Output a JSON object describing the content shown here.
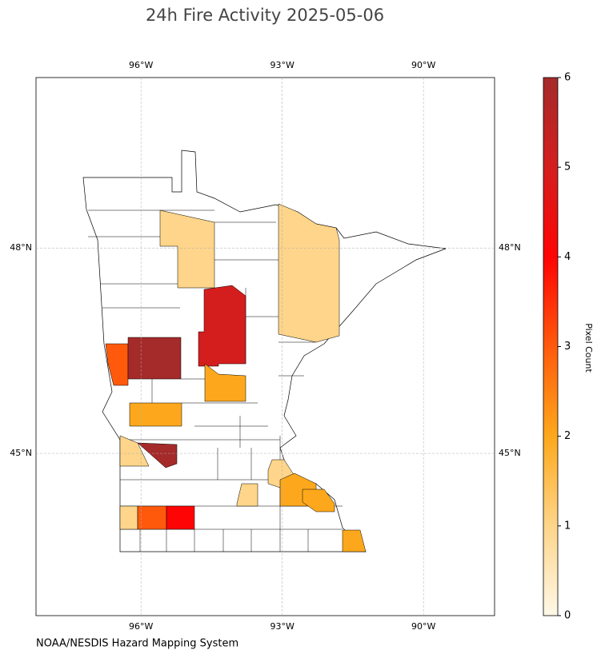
{
  "chart_data": {
    "type": "choropleth",
    "title": "24h Fire Activity 2025-05-06",
    "source": "NOAA/NESDIS Hazard Mapping System",
    "xlim": [
      -98.23,
      -88.49
    ],
    "ylim": [
      42.63,
      50.49
    ],
    "xticks": [
      {
        "value": -96,
        "label": "96°W"
      },
      {
        "value": -93,
        "label": "93°W"
      },
      {
        "value": -90,
        "label": "90°W"
      }
    ],
    "yticks": [
      {
        "value": 45,
        "label": "45°N"
      },
      {
        "value": 48,
        "label": "48°N"
      }
    ],
    "grid": true,
    "values": [
      1,
      1,
      5,
      3,
      6,
      2,
      2,
      1,
      6,
      1,
      2,
      2,
      1,
      1,
      3,
      4,
      2
    ],
    "colorbar": {
      "label": "Pixel Count",
      "clim": [
        0,
        6
      ],
      "ticks": [
        0,
        1,
        2,
        3,
        4,
        5,
        6
      ],
      "colormap": [
        "#fff8e8",
        "#fed58a",
        "#fda81c",
        "#ff5a0c",
        "#fe0404",
        "#d41e1e",
        "#a52a2a"
      ]
    }
  }
}
